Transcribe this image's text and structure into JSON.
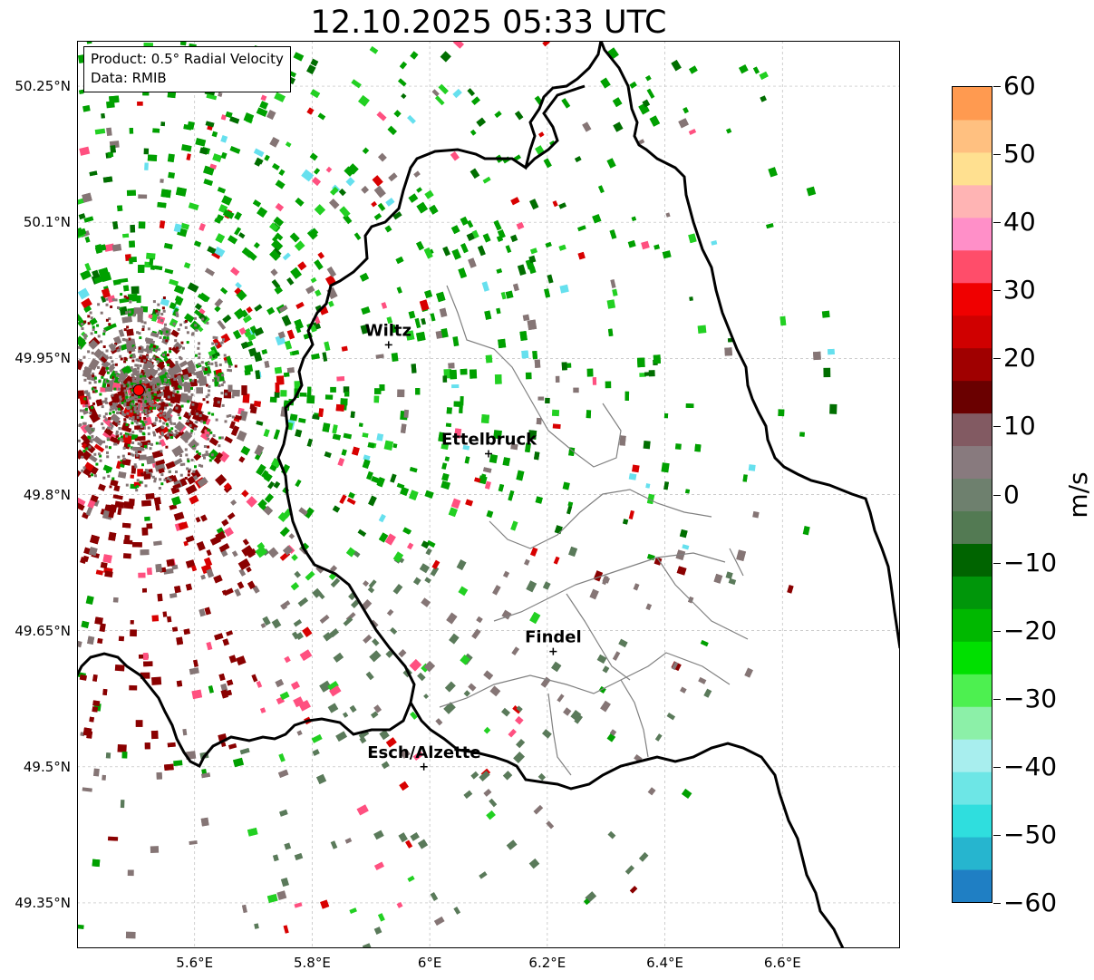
{
  "title": "12.10.2025 05:33 UTC",
  "info": {
    "product": "Product: 0.5° Radial Velocity",
    "source": "Data: RMIB"
  },
  "lat_labels": [
    "50.25°N",
    "50.1°N",
    "49.95°N",
    "49.8°N",
    "49.65°N",
    "49.5°N",
    "49.35°N"
  ],
  "lat_values": [
    50.25,
    50.1,
    49.95,
    49.8,
    49.65,
    49.5,
    49.35
  ],
  "lon_labels": [
    "5.6°E",
    "5.8°E",
    "6°E",
    "6.2°E",
    "6.4°E",
    "6.6°E"
  ],
  "lon_values": [
    5.6,
    5.8,
    6.0,
    6.2,
    6.4,
    6.6
  ],
  "extent": {
    "lon_min": 5.4,
    "lon_max": 6.8,
    "lat_min": 49.3,
    "lat_max": 50.3
  },
  "radar_site": {
    "lon": 5.505,
    "lat": 49.915
  },
  "cities": [
    {
      "name": "Wiltz",
      "lon": 5.93,
      "lat": 49.965
    },
    {
      "name": "Ettelbruck",
      "lon": 6.1,
      "lat": 49.845
    },
    {
      "name": "Findel",
      "lon": 6.21,
      "lat": 49.627
    },
    {
      "name": "Esch/Alzette",
      "lon": 5.99,
      "lat": 49.5
    }
  ],
  "colorbar": {
    "unit": "m/s",
    "min": -60,
    "max": 60,
    "tick_labels": [
      "60",
      "50",
      "40",
      "30",
      "20",
      "10",
      "0",
      "−10",
      "−20",
      "−30",
      "−40",
      "−50",
      "−60"
    ],
    "tick_values": [
      60,
      50,
      40,
      30,
      20,
      10,
      0,
      -10,
      -20,
      -30,
      -40,
      -50,
      -60
    ],
    "colors": [
      "#1f7fc4",
      "#26b5cf",
      "#2fdede",
      "#6de6e6",
      "#a8eeee",
      "#8cf0a8",
      "#4df050",
      "#00e000",
      "#00b800",
      "#00960a",
      "#006400",
      "#537a53",
      "#6e806e",
      "#887a7e",
      "#825a62",
      "#6a0000",
      "#a00000",
      "#d00000",
      "#f00000",
      "#ff4d6a",
      "#ff8fc8",
      "#ffb4b4",
      "#ffe090",
      "#ffc080",
      "#ff9a50"
    ]
  },
  "velocity_colors": {
    "inbound_strong": "#00a000",
    "inbound_light": "#22d022",
    "inbound_dark": "#006e00",
    "near_zero_green": "#5a7a5a",
    "near_zero_gray": "#857575",
    "outbound": "#8a0000",
    "outbound_red": "#d80000",
    "pink": "#ff5080",
    "cyan": "#66e0ee",
    "orange": "#ffa050"
  }
}
